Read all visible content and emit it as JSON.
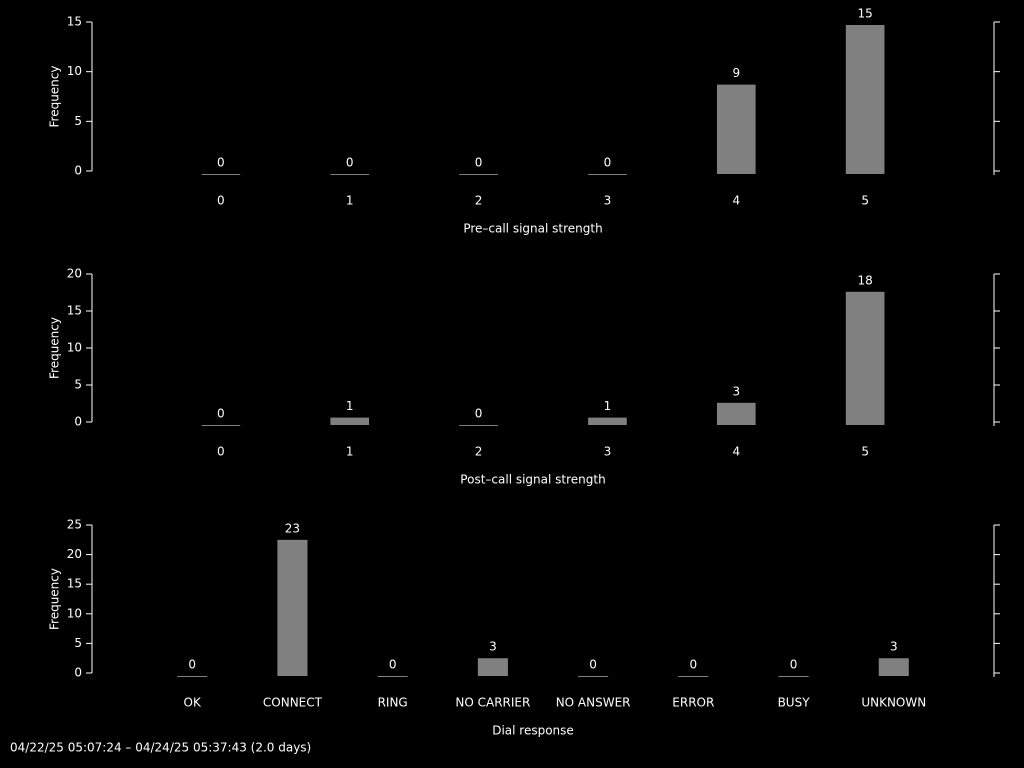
{
  "chart_data": [
    {
      "type": "bar",
      "x_label": "Pre–call signal strength",
      "y_label": "Frequency",
      "categories": [
        "0",
        "1",
        "2",
        "3",
        "4",
        "5"
      ],
      "values": [
        0,
        0,
        0,
        0,
        9,
        15
      ],
      "color": "#808080",
      "ylim": [
        0,
        15
      ],
      "yticks": [
        0,
        5,
        10,
        15
      ]
    },
    {
      "type": "bar",
      "x_label": "Post–call signal strength",
      "y_label": "Frequency",
      "categories": [
        "0",
        "1",
        "2",
        "3",
        "4",
        "5"
      ],
      "values": [
        0,
        1,
        0,
        1,
        3,
        18
      ],
      "color": "#808080",
      "ylim": [
        0,
        20
      ],
      "yticks": [
        0,
        5,
        10,
        15,
        20
      ]
    },
    {
      "type": "bar",
      "x_label": "Dial response",
      "y_label": "Frequency",
      "categories": [
        "OK",
        "CONNECT",
        "RING",
        "NO CARRIER",
        "NO ANSWER",
        "ERROR",
        "BUSY",
        "UNKNOWN"
      ],
      "values": [
        0,
        23,
        0,
        3,
        0,
        0,
        0,
        3
      ],
      "color": "#808080",
      "ylim": [
        0,
        25
      ],
      "yticks": [
        0,
        5,
        10,
        15,
        20,
        25
      ]
    }
  ],
  "footer": "04/22/25 05:07:24 – 04/24/25 05:37:43 (2.0 days)"
}
